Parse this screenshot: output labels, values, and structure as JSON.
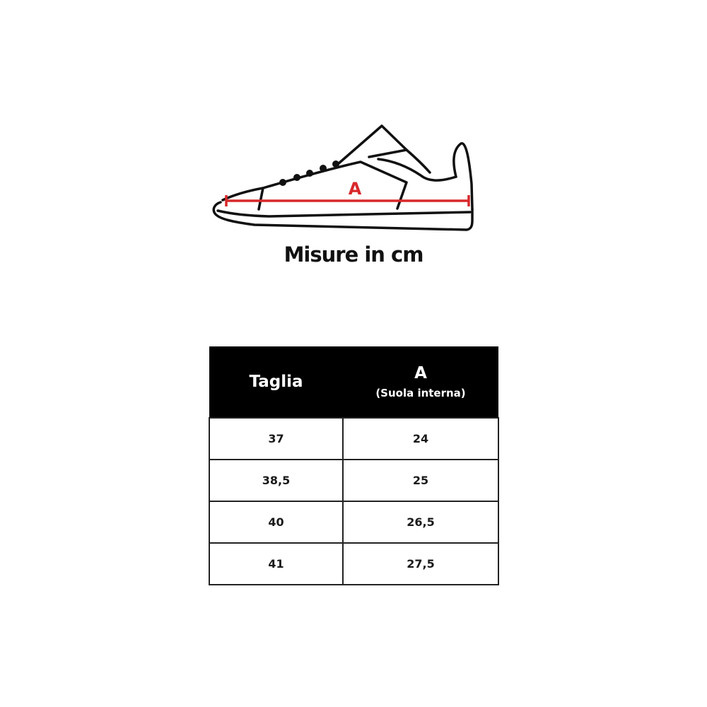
{
  "illustration": {
    "measure_label": "A",
    "accent_color": "#d8282b",
    "icon": "sneaker-outline"
  },
  "title": "Misure in cm",
  "table": {
    "headers": [
      {
        "label": "Taglia"
      },
      {
        "label": "A",
        "sublabel": "(Suola interna)"
      }
    ],
    "rows": [
      [
        "37",
        "24"
      ],
      [
        "38,5",
        "25"
      ],
      [
        "40",
        "26,5"
      ],
      [
        "41",
        "27,5"
      ]
    ]
  }
}
